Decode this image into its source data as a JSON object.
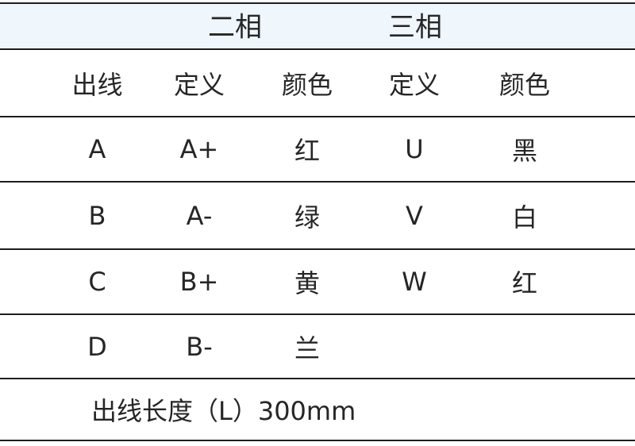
{
  "table": {
    "phase_headers": [
      {
        "label": "二相"
      },
      {
        "label": "三相"
      }
    ],
    "column_headers": [
      "出线",
      "定义",
      "颜色",
      "定义",
      "颜色"
    ],
    "rows": [
      [
        "A",
        "A+",
        "红",
        "U",
        "黑"
      ],
      [
        "B",
        "A-",
        "绿",
        "V",
        "白"
      ],
      [
        "C",
        "B+",
        "黄",
        "W",
        "红"
      ],
      [
        "D",
        "B-",
        "兰",
        "",
        ""
      ]
    ],
    "footer_note": "出线长度（L）300mm"
  },
  "colors": {
    "header_band_bg": "#eff6fc",
    "rule_line": "#1e1e1e",
    "text": "#262626"
  }
}
